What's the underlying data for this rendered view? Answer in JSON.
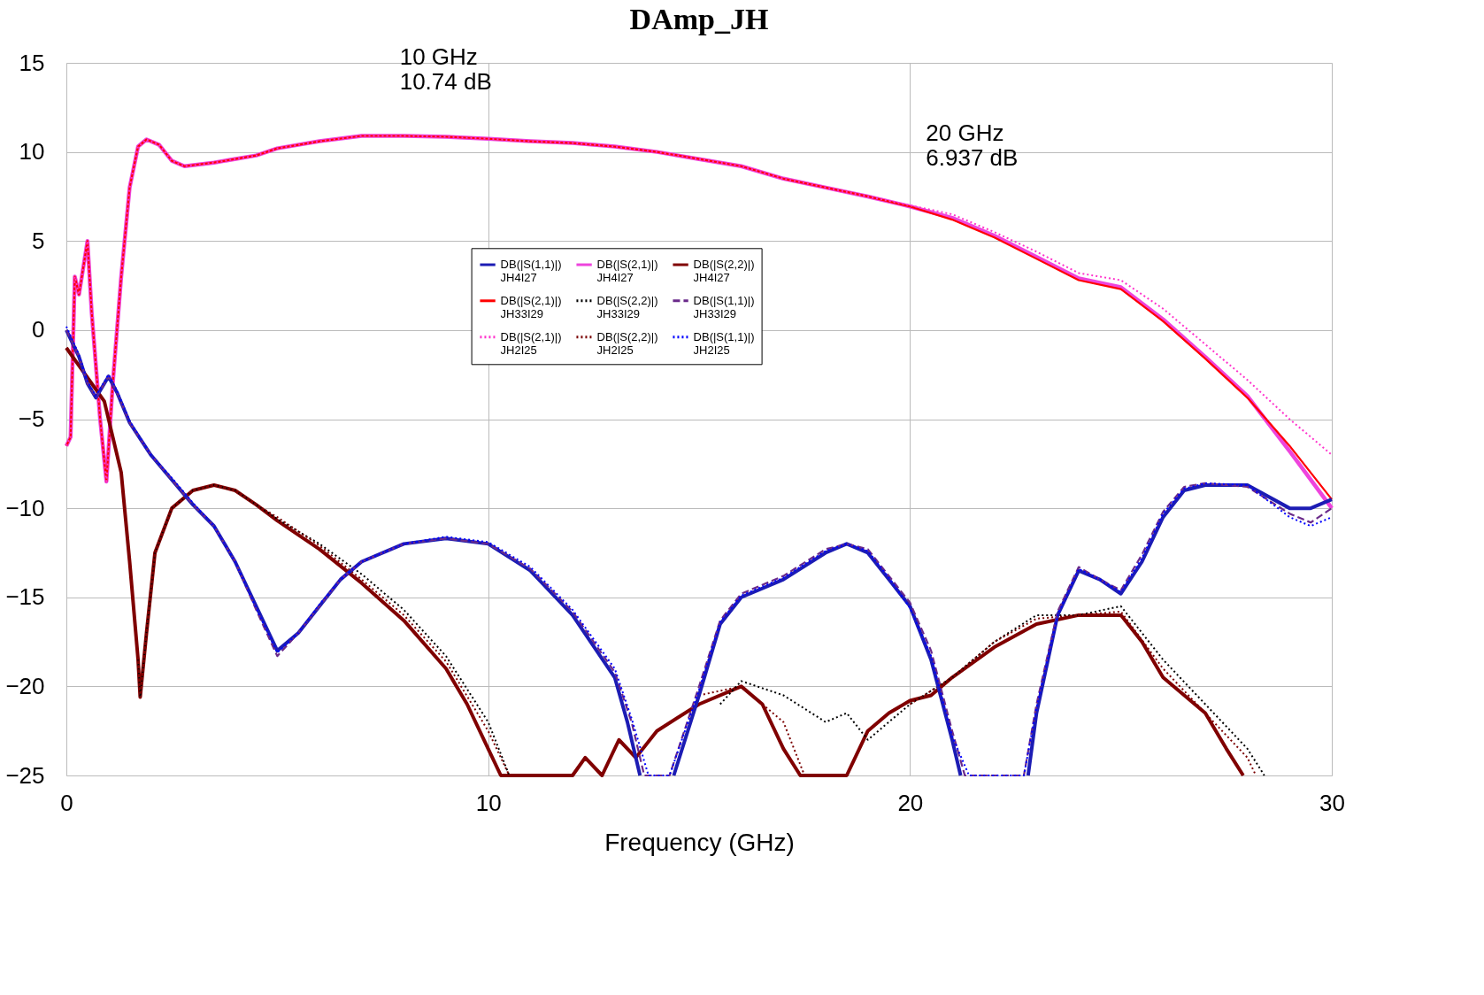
{
  "chart_data": {
    "type": "line",
    "title": "DAmp_JH",
    "xlabel": "Frequency (GHz)",
    "xlim": [
      0,
      30
    ],
    "xticks": [
      0,
      10,
      20,
      30
    ],
    "ylim": [
      -25,
      15
    ],
    "yticks": [
      -25,
      -20,
      -15,
      -10,
      -5,
      0,
      5,
      10,
      15
    ],
    "grid": true,
    "legend": "center",
    "annotations": [
      {
        "text": "10 GHz\n10.74 dB",
        "x": 10,
        "y": 10.74
      },
      {
        "text": "20 GHz\n6.937 dB",
        "x": 20,
        "y": 6.937
      }
    ],
    "series": [
      {
        "name": "DB(|S(1,1)|)\nJH4I27",
        "color": "#1c1cb4",
        "line_style": "solid",
        "x": [
          0,
          0.3,
          0.5,
          0.7,
          1.0,
          1.2,
          1.5,
          2,
          2.5,
          3,
          3.5,
          4,
          4.5,
          5,
          5.5,
          6,
          6.5,
          7,
          8,
          9,
          10,
          11,
          12,
          13,
          13.3,
          13.6,
          14,
          14.4,
          15,
          15.5,
          16,
          17,
          18,
          18.5,
          19,
          19.5,
          20,
          20.5,
          21,
          21.2,
          22,
          22.8,
          23,
          23.5,
          24,
          24.5,
          25,
          25.5,
          26,
          26.5,
          27,
          28,
          29,
          29.5,
          30
        ],
        "values": [
          0,
          -1.5,
          -3,
          -3.8,
          -2.6,
          -3.5,
          -5.2,
          -7,
          -8.4,
          -9.8,
          -11,
          -13,
          -15.5,
          -18,
          -17,
          -15.5,
          -14,
          -13,
          -12,
          -11.7,
          -12,
          -13.5,
          -16,
          -19.5,
          -22,
          -25,
          null,
          -25,
          -20.5,
          -16.5,
          -15,
          -14,
          -12.5,
          -12,
          -12.5,
          -14,
          -15.5,
          -18.5,
          -23,
          -25,
          null,
          -25,
          -21.5,
          -16,
          -13.5,
          -14,
          -14.8,
          -13,
          -10.5,
          -9,
          -8.7,
          -8.7,
          -10,
          -10,
          -9.5
        ]
      },
      {
        "name": "DB(|S(2,1)|)\nJH33I29",
        "color": "#ff0000",
        "line_style": "solid",
        "x": [
          0,
          0.1,
          0.2,
          0.3,
          0.5,
          0.6,
          0.8,
          0.95,
          1.1,
          1.3,
          1.5,
          1.7,
          1.9,
          2.2,
          2.5,
          2.8,
          3.5,
          4.5,
          5,
          6,
          7,
          8,
          9,
          10,
          11,
          12,
          13,
          14,
          15,
          16,
          17,
          18,
          19,
          20,
          21,
          22,
          23,
          24,
          25,
          26,
          27,
          28,
          29,
          30
        ],
        "values": [
          -6.5,
          -6,
          3,
          2,
          5,
          1,
          -5,
          -8.5,
          -3,
          3,
          8,
          10.3,
          10.7,
          10.4,
          9.5,
          9.2,
          9.4,
          9.8,
          10.2,
          10.6,
          10.9,
          10.9,
          10.85,
          10.74,
          10.6,
          10.5,
          10.3,
          10,
          9.6,
          9.2,
          8.5,
          8,
          7.5,
          6.94,
          6.2,
          5.2,
          4,
          2.8,
          2.3,
          0.5,
          -1.6,
          -3.8,
          -6.5,
          -9.5
        ]
      },
      {
        "name": "DB(|S(2,1)|)\nJH2I25",
        "color": "#ff33cc",
        "line_style": "dotted",
        "x": [
          0,
          0.1,
          0.2,
          0.3,
          0.5,
          0.6,
          0.8,
          0.95,
          1.1,
          1.3,
          1.5,
          1.7,
          1.9,
          2.2,
          2.5,
          2.8,
          3.5,
          4.5,
          5,
          6,
          7,
          8,
          9,
          10,
          11,
          12,
          13,
          14,
          15,
          16,
          17,
          18,
          19,
          20,
          21,
          22,
          23,
          24,
          25,
          26,
          27,
          28,
          29,
          30
        ],
        "values": [
          -6.5,
          -6,
          3,
          2,
          5,
          1,
          -5,
          -8.5,
          -3,
          3,
          8,
          10.3,
          10.7,
          10.4,
          9.5,
          9.2,
          9.4,
          9.8,
          10.2,
          10.6,
          10.9,
          10.9,
          10.85,
          10.74,
          10.6,
          10.5,
          10.3,
          10,
          9.6,
          9.2,
          8.5,
          8,
          7.5,
          7,
          6.5,
          5.5,
          4.4,
          3.2,
          2.8,
          1.2,
          -0.8,
          -2.8,
          -5,
          -7
        ]
      },
      {
        "name": "DB(|S(2,1)|)\nJH4I27",
        "color": "#ee44dd",
        "line_style": "solid",
        "x": [
          0,
          0.1,
          0.2,
          0.3,
          0.5,
          0.6,
          0.8,
          0.95,
          1.1,
          1.3,
          1.5,
          1.7,
          1.9,
          2.2,
          2.5,
          2.8,
          3.5,
          4.5,
          5,
          6,
          7,
          8,
          9,
          10,
          11,
          12,
          13,
          14,
          15,
          16,
          17,
          18,
          19,
          20,
          21,
          22,
          23,
          24,
          25,
          26,
          27,
          28,
          29,
          30
        ],
        "values": [
          -6.5,
          -6,
          3,
          2,
          5,
          1,
          -5,
          -8.5,
          -3,
          3,
          8,
          10.3,
          10.7,
          10.4,
          9.5,
          9.2,
          9.4,
          9.8,
          10.2,
          10.6,
          10.9,
          10.9,
          10.85,
          10.74,
          10.6,
          10.5,
          10.3,
          10,
          9.6,
          9.2,
          8.5,
          8,
          7.5,
          6.94,
          6.3,
          5.3,
          4.1,
          2.9,
          2.4,
          0.6,
          -1.5,
          -3.7,
          -6.8,
          -10
        ]
      },
      {
        "name": "DB(|S(2,2)|)\nJH33I29",
        "color": "#000000",
        "line_style": "dotted",
        "x": [
          1.7,
          1.75,
          1.9,
          2.1,
          2.5,
          3,
          3.5,
          4,
          4.5,
          5,
          6,
          7,
          8,
          9,
          10,
          10.5,
          12,
          15.5,
          16,
          17,
          18,
          18.5,
          19,
          20,
          21,
          22,
          23,
          24,
          25,
          26,
          27,
          28,
          28.4
        ],
        "values": [
          -18.5,
          -20.6,
          -17,
          -12.5,
          -10,
          -9,
          -8.7,
          -9,
          -9.8,
          -10.6,
          -12,
          -13.7,
          -15.7,
          -18.3,
          -22,
          -25,
          null,
          -21,
          -19.7,
          -20.5,
          -22,
          -21.5,
          -23,
          -21,
          -19.5,
          -17.5,
          -16,
          -16,
          -15.5,
          -18.5,
          -21,
          -23.5,
          -25
        ]
      },
      {
        "name": "DB(|S(2,2)|)\nJH2I25",
        "color": "#7a0000",
        "line_style": "dotted",
        "x": [
          0,
          0.3,
          0.6,
          0.9,
          1.1,
          1.3,
          1.5,
          1.7,
          1.75,
          1.9,
          2.1,
          2.5,
          3,
          3.5,
          4,
          4.5,
          5,
          6,
          7,
          8,
          9,
          10,
          10.5,
          12,
          15,
          16,
          17,
          17.5,
          19,
          20,
          21,
          22,
          23,
          24,
          25,
          26,
          27,
          28,
          28.2
        ],
        "values": [
          -1,
          -2,
          -3,
          -4,
          -6,
          -8,
          -13,
          -18.5,
          -20.6,
          -17,
          -12.5,
          -10,
          -9,
          -8.7,
          -9,
          -9.8,
          -10.5,
          -12.1,
          -14,
          -16,
          -18.6,
          -22.5,
          -25,
          null,
          -20.5,
          -20,
          -22,
          -25,
          null,
          -21,
          -19.5,
          -17.5,
          -16.2,
          -16,
          -15.8,
          -19,
          -21.5,
          -24,
          -25
        ]
      },
      {
        "name": "DB(|S(2,2)|)\nJH4I27",
        "color": "#800000",
        "line_style": "solid",
        "x": [
          0,
          0.3,
          0.6,
          0.9,
          1.1,
          1.3,
          1.5,
          1.7,
          1.75,
          1.9,
          2.1,
          2.5,
          3,
          3.5,
          4,
          4.5,
          5,
          6,
          7,
          8,
          9,
          9.5,
          10,
          10.3,
          12,
          12.3,
          12.7,
          13.1,
          13.5,
          14,
          15,
          16,
          16.5,
          17,
          17.4,
          18.5,
          19,
          19.5,
          20,
          20.5,
          21,
          22,
          23,
          24,
          25,
          25.5,
          26,
          27,
          27.5,
          27.9
        ],
        "values": [
          -1,
          -2,
          -3,
          -4,
          -6,
          -8,
          -13,
          -18.5,
          -20.6,
          -17,
          -12.5,
          -10,
          -9,
          -8.7,
          -9,
          -9.8,
          -10.7,
          -12.3,
          -14.2,
          -16.3,
          -19,
          -21,
          -23.5,
          -25,
          -25,
          -24,
          -25,
          -23,
          -24,
          -22.5,
          -21,
          -20,
          -21,
          -23.5,
          -25,
          -25,
          -22.5,
          -21.5,
          -20.8,
          -20.5,
          -19.5,
          -17.8,
          -16.5,
          -16,
          -16,
          -17.5,
          -19.5,
          -21.5,
          -23.5,
          -25
        ]
      },
      {
        "name": "DB(|S(1,1)|)\nJH33I29",
        "color": "#6a2a8a",
        "line_style": "dashed",
        "x": [
          0,
          0.3,
          0.5,
          0.7,
          1.0,
          1.2,
          1.5,
          2,
          2.5,
          3,
          3.5,
          4,
          4.5,
          5,
          5.5,
          6,
          6.5,
          7,
          8,
          9,
          10,
          11,
          12,
          13,
          13.4,
          13.7,
          14.3,
          15,
          15.5,
          16,
          17,
          18,
          18.5,
          19,
          19.5,
          20,
          20.5,
          21,
          21.3,
          22.7,
          23,
          23.5,
          24,
          24.5,
          25,
          25.5,
          26,
          26.5,
          27,
          28,
          29,
          29.5,
          30
        ],
        "values": [
          0,
          -1.5,
          -3,
          -3.8,
          -2.6,
          -3.5,
          -5.2,
          -7,
          -8.4,
          -9.8,
          -11,
          -13,
          -15.7,
          -18.3,
          -17,
          -15.5,
          -14,
          -13,
          -12,
          -11.7,
          -12,
          -13.4,
          -15.8,
          -19.2,
          -22,
          -25,
          -25,
          -20,
          -16.3,
          -14.8,
          -13.8,
          -12.3,
          -12,
          -12.3,
          -13.8,
          -15.3,
          -18,
          -22.5,
          -25,
          -25,
          -21,
          -15.8,
          -13.3,
          -14,
          -14.6,
          -12.6,
          -10.2,
          -8.8,
          -8.6,
          -8.8,
          -10.3,
          -10.8,
          -10
        ]
      },
      {
        "name": "DB(|S(1,1)|)\nJH2I25",
        "color": "#0000ff",
        "line_style": "dotted",
        "x": [
          0,
          0.3,
          0.5,
          0.7,
          1.0,
          1.2,
          1.5,
          2,
          2.5,
          3,
          3.5,
          4,
          4.5,
          5,
          5.5,
          6,
          6.5,
          7,
          8,
          9,
          10,
          11,
          12,
          13,
          13.4,
          13.8,
          14.3,
          15,
          15.5,
          16,
          17,
          18,
          18.5,
          19,
          19.5,
          20,
          20.5,
          21,
          21.4,
          22.7,
          23,
          23.5,
          24,
          24.5,
          25,
          25.5,
          26,
          26.5,
          27,
          28,
          29,
          29.5,
          30
        ],
        "values": [
          0.2,
          -1.4,
          -2.9,
          -3.7,
          -2.5,
          -3.4,
          -5.1,
          -7,
          -8.3,
          -9.7,
          -11,
          -13,
          -15.6,
          -18.1,
          -17,
          -15.4,
          -14,
          -13,
          -12,
          -11.6,
          -11.9,
          -13.3,
          -15.7,
          -19,
          -21.8,
          -25,
          -25,
          -20.2,
          -16.4,
          -14.9,
          -13.9,
          -12.4,
          -12,
          -12.4,
          -13.9,
          -15.6,
          -18.3,
          -22.8,
          -25,
          -25,
          -21.2,
          -16,
          -13.4,
          -14,
          -14.7,
          -12.8,
          -10.3,
          -8.9,
          -8.6,
          -8.7,
          -10.5,
          -11,
          -10.5
        ]
      }
    ]
  }
}
